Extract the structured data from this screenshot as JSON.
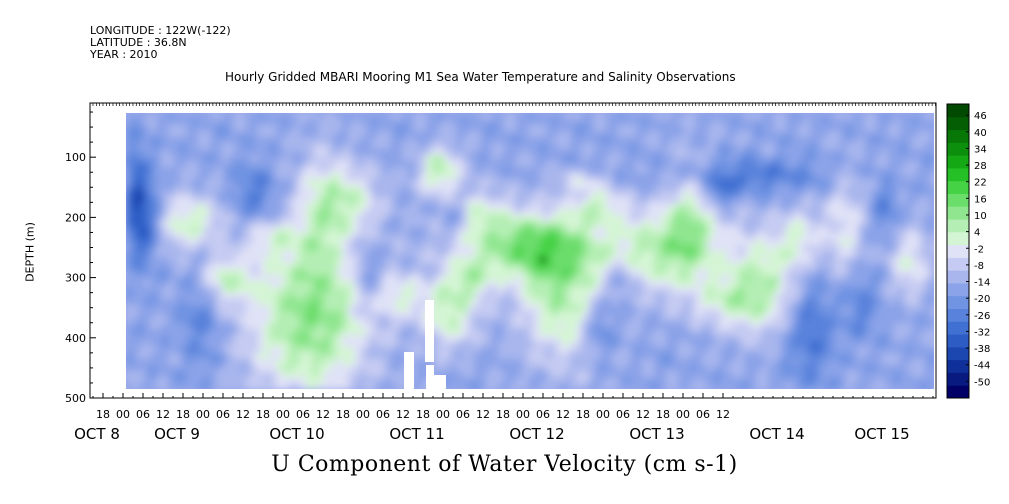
{
  "header": {
    "longitude": "LONGITUDE : 122W(-122)",
    "latitude": "LATITUDE : 36.8N",
    "year": "YEAR : 2010"
  },
  "chart_data": {
    "type": "heatmap",
    "title": "Hourly Gridded MBARI Mooring M1 Sea Water Temperature and Salinity Observations",
    "xlabel": "U Component of Water Velocity (cm s-1)",
    "ylabel": "DEPTH (m)",
    "ylim": [
      500,
      10
    ],
    "y_axis_inverted": true,
    "yticks": [
      100,
      200,
      300,
      400,
      500
    ],
    "x_hour_ticks": [
      "18",
      "00",
      "06",
      "12",
      "18",
      "00",
      "06",
      "12",
      "18",
      "00",
      "06",
      "12",
      "18",
      "00",
      "06",
      "12",
      "18",
      "00",
      "06",
      "12",
      "18",
      "00",
      "06",
      "12",
      "18",
      "00",
      "06",
      "12",
      "18",
      "00",
      "06",
      "12"
    ],
    "x_day_labels": [
      "OCT  8",
      "OCT  9",
      "OCT 10",
      "OCT 11",
      "OCT 12",
      "OCT 13",
      "OCT 14",
      "OCT 15"
    ],
    "colorbar": {
      "levels": [
        -50,
        -44,
        -38,
        -32,
        -26,
        -20,
        -14,
        -8,
        -2,
        4,
        10,
        16,
        22,
        28,
        34,
        40,
        46
      ],
      "label_every": 3,
      "colors": [
        "#000066",
        "#081a80",
        "#0f2f99",
        "#1c46b0",
        "#2c5cc4",
        "#4070d2",
        "#5882db",
        "#7093e2",
        "#8ba3e8",
        "#a8b6ed",
        "#c5cbf2",
        "#e0e2f7",
        "#d4f5d4",
        "#b4eeb4",
        "#8fe68f",
        "#6bdd6b",
        "#45d245",
        "#25c025",
        "#15a815",
        "#0c8f0c",
        "#077707",
        "#045f04",
        "#024a02"
      ]
    }
  }
}
